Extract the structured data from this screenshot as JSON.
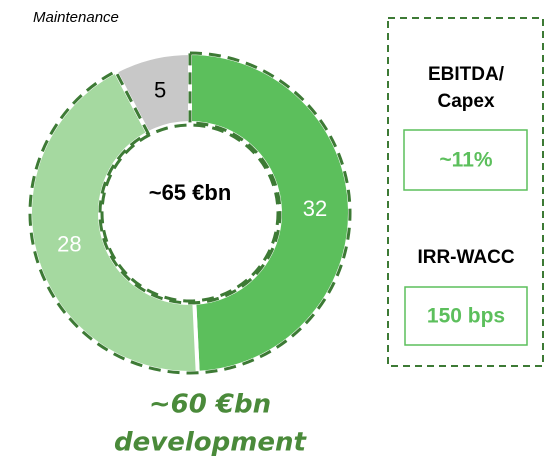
{
  "chart_data": {
    "type": "donut",
    "categories": [
      null,
      null,
      "Maintenance"
    ],
    "values": [
      32,
      28,
      5
    ],
    "colors": [
      "#5cbf5c",
      "#a5d9a0",
      "#c8c8c8"
    ],
    "center_label": "~65 €bn",
    "annotation": [
      "~60 €bn",
      "development"
    ]
  },
  "kpis": [
    {
      "label": [
        "EBITDA/",
        "Capex"
      ],
      "value": "~11%"
    },
    {
      "label": [
        "IRR-WACC"
      ],
      "value": "150 bps"
    }
  ]
}
